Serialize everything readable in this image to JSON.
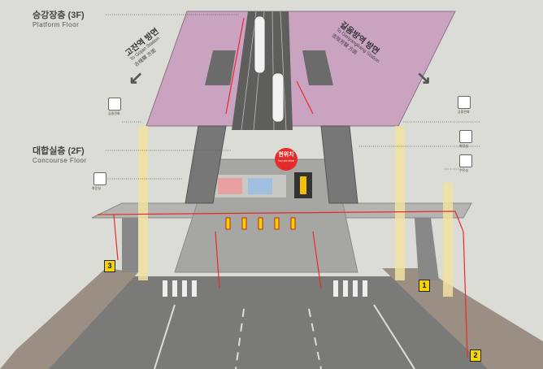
{
  "floors": {
    "platform": {
      "title": "승강장층 (3F)",
      "subtitle": "Platform Floor"
    },
    "concourse": {
      "title": "대합실층 (2F)",
      "subtitle": "Concourse Floor"
    }
  },
  "directions": {
    "left": {
      "korean": "고잔역 방면",
      "english": "To Gojan Station",
      "hanja": "古棧驛 方面"
    },
    "right": {
      "korean": "길음방역 방면",
      "english": "To Gimyangbang Station",
      "hanja": "吉陰芳驛 方面"
    }
  },
  "you_are_here": {
    "label": "현위치",
    "sub": "You are Here"
  },
  "exits": [
    "1",
    "2",
    "3"
  ],
  "facilities": {
    "left_top": "공중전화",
    "left_mid": "화장실",
    "right_top": "공중전화",
    "right_mid": "화장실",
    "right_low": "수유실"
  },
  "colors": {
    "platform": "#c9a3c0",
    "concourse": "#b4b4b0",
    "accent": "#e62b2b",
    "exit": "#f5d400"
  }
}
